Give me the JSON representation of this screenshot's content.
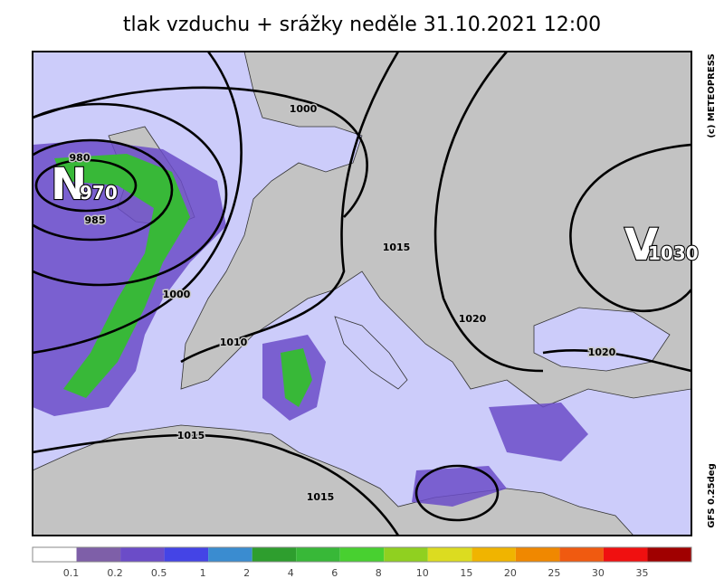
{
  "title": "tlak vzduchu + srážky  neděle 31.10.2021 12:00",
  "credit": "(c) METEOPRESS",
  "model": "GFS 0.25deg",
  "centers": [
    {
      "letter": "N",
      "value": "970"
    },
    {
      "letter": "V",
      "value": "1030"
    }
  ],
  "isobar_labels": [
    "980",
    "985",
    "1000",
    "1000",
    "1015",
    "1010",
    "1020",
    "1020",
    "1015",
    "1015"
  ],
  "legend": {
    "labels": [
      "0.1",
      "0.2",
      "0.5",
      "1",
      "2",
      "4",
      "6",
      "8",
      "10",
      "15",
      "20",
      "25",
      "30",
      "35"
    ],
    "colors": [
      "#ffffff",
      "#7e5fa8",
      "#6b4cc8",
      "#4444e6",
      "#3a8cd0",
      "#2e9e2e",
      "#38b838",
      "#48d030",
      "#90d020",
      "#dcdc20",
      "#f0b400",
      "#f08800",
      "#f05a10",
      "#f01010",
      "#a00000"
    ]
  }
}
